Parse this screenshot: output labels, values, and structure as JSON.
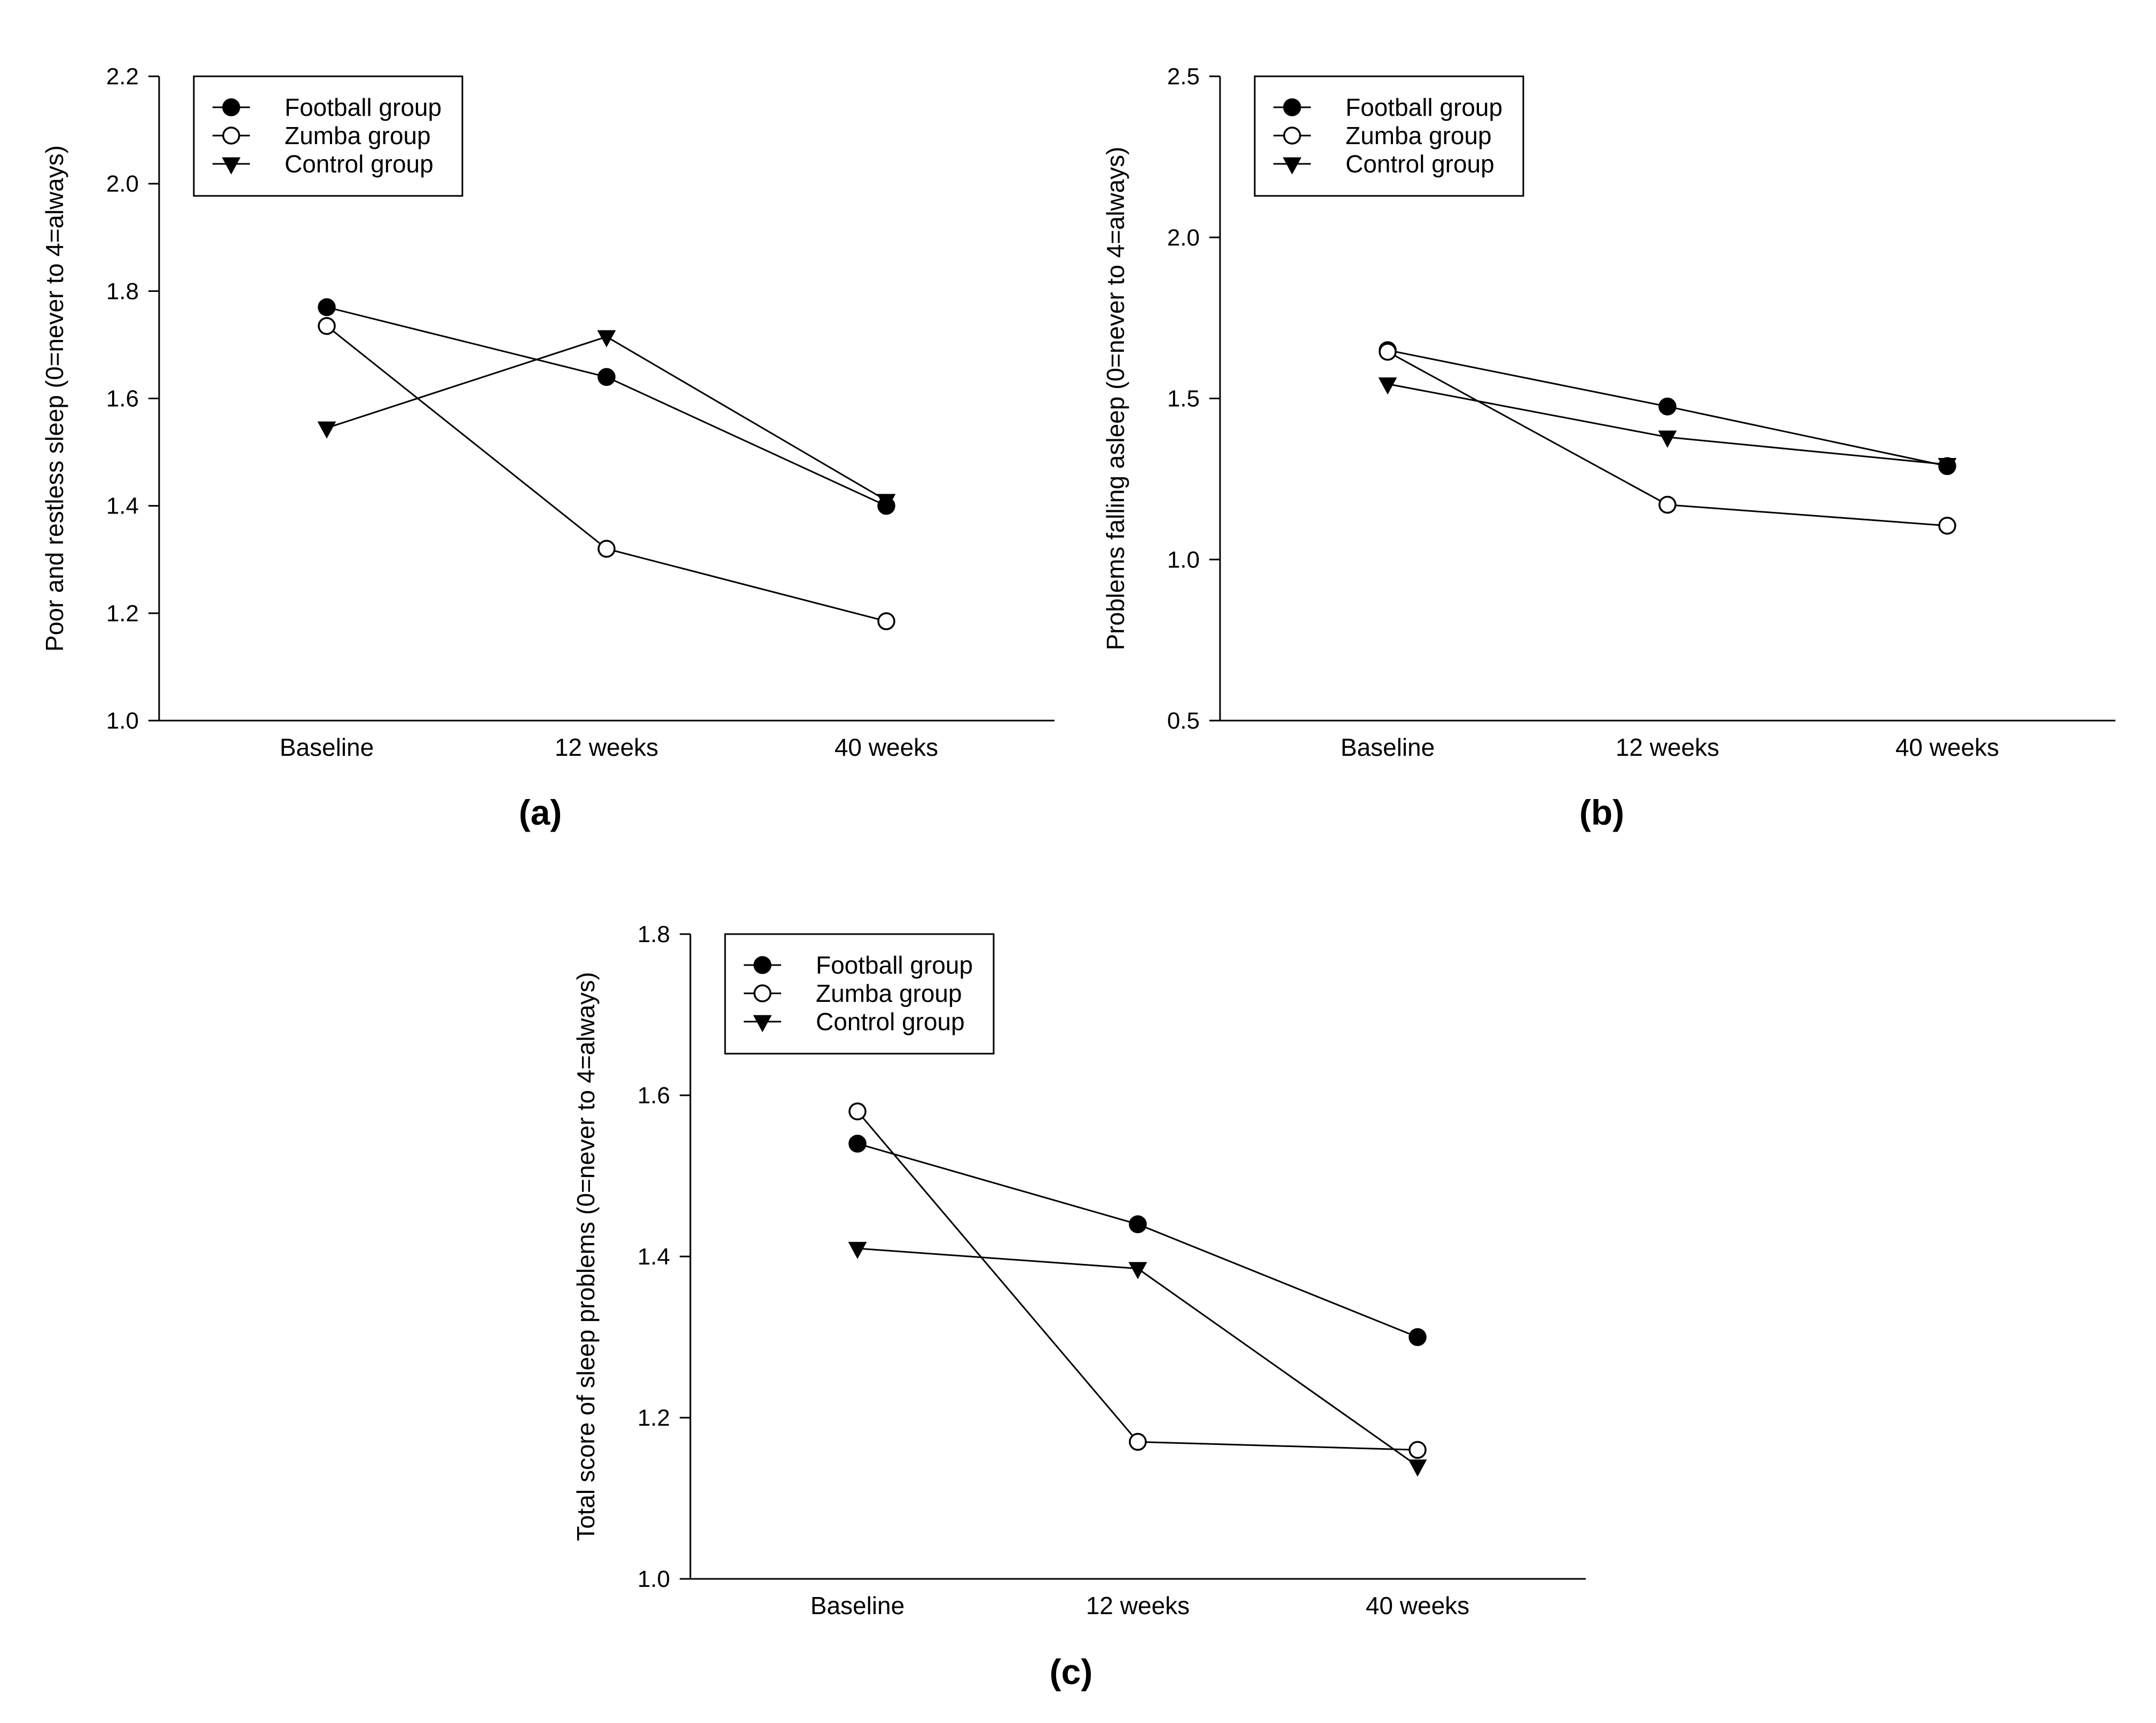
{
  "figure": {
    "legend": {
      "football": "Football group",
      "zumba": "Zumba group",
      "control": "Control group"
    }
  },
  "chart_data": [
    {
      "id": "a",
      "type": "line",
      "panel_label": "(a)",
      "title": "",
      "xlabel": "",
      "ylabel": "Poor and restless sleep (0=never to 4=always)",
      "categories": [
        "Baseline",
        "12 weeks",
        "40 weeks"
      ],
      "ylim": [
        1.0,
        2.2
      ],
      "yticks": [
        "1.0",
        "1.2",
        "1.4",
        "1.6",
        "1.8",
        "2.0",
        "2.2"
      ],
      "legend_position": "top-left",
      "grid": false,
      "series": [
        {
          "name": "Football group",
          "marker": "filled-circle",
          "values": [
            1.77,
            1.64,
            1.4
          ]
        },
        {
          "name": "Zumba group",
          "marker": "open-circle",
          "values": [
            1.735,
            1.32,
            1.185
          ]
        },
        {
          "name": "Control group",
          "marker": "filled-triangle-down",
          "values": [
            1.545,
            1.715,
            1.41
          ]
        }
      ]
    },
    {
      "id": "b",
      "type": "line",
      "panel_label": "(b)",
      "title": "",
      "xlabel": "",
      "ylabel": "Problems falling asleep (0=never to 4=always)",
      "categories": [
        "Baseline",
        "12 weeks",
        "40 weeks"
      ],
      "ylim": [
        0.5,
        2.5
      ],
      "yticks": [
        "0.5",
        "1.0",
        "1.5",
        "2.0",
        "2.5"
      ],
      "legend_position": "top-left",
      "grid": false,
      "series": [
        {
          "name": "Football group",
          "marker": "filled-circle",
          "values": [
            1.65,
            1.475,
            1.29
          ]
        },
        {
          "name": "Zumba group",
          "marker": "open-circle",
          "values": [
            1.645,
            1.17,
            1.105
          ]
        },
        {
          "name": "Control group",
          "marker": "filled-triangle-down",
          "values": [
            1.545,
            1.38,
            1.295
          ]
        }
      ]
    },
    {
      "id": "c",
      "type": "line",
      "panel_label": "(c)",
      "title": "",
      "xlabel": "",
      "ylabel": "Total score of sleep problems (0=never to 4=always)",
      "categories": [
        "Baseline",
        "12 weeks",
        "40 weeks"
      ],
      "ylim": [
        1.0,
        1.8
      ],
      "yticks": [
        "1.0",
        "1.2",
        "1.4",
        "1.6",
        "1.8"
      ],
      "legend_position": "top-left",
      "grid": false,
      "series": [
        {
          "name": "Football group",
          "marker": "filled-circle",
          "values": [
            1.54,
            1.44,
            1.3
          ]
        },
        {
          "name": "Zumba group",
          "marker": "open-circle",
          "values": [
            1.58,
            1.17,
            1.16
          ]
        },
        {
          "name": "Control group",
          "marker": "filled-triangle-down",
          "values": [
            1.41,
            1.385,
            1.14
          ]
        }
      ]
    }
  ]
}
